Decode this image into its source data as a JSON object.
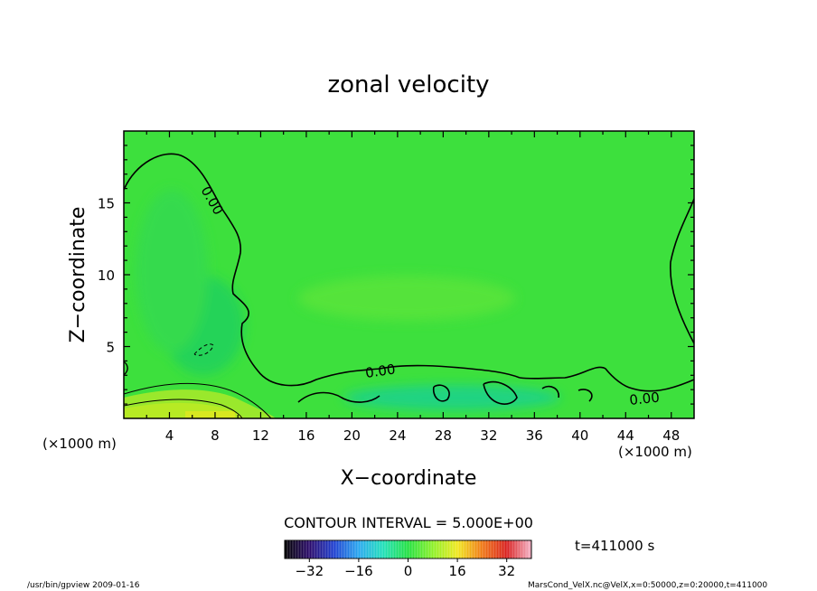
{
  "chart_data": {
    "type": "heatmap",
    "title": "zonal velocity",
    "xlabel": "X−coordinate",
    "ylabel": "Z−coordinate",
    "x_unit_left": "(×1000 m)",
    "x_unit_right": "(×1000 m)",
    "xlim": [
      0,
      50
    ],
    "ylim": [
      0,
      20
    ],
    "x_ticks": [
      4,
      8,
      12,
      16,
      20,
      24,
      28,
      32,
      36,
      40,
      44,
      48
    ],
    "y_ticks": [
      5,
      10,
      15
    ],
    "contour_interval_label": "CONTOUR INTERVAL = 5.000E+00",
    "contour_labels": [
      "0.00",
      "0.00",
      "0.00"
    ],
    "time_label": "t=411000 s",
    "colorbar": {
      "range": [
        -40,
        40
      ],
      "ticks": [
        -32,
        -16,
        0,
        16,
        32
      ],
      "colors": [
        "#000000",
        "#2a0a6a",
        "#1f3fd0",
        "#28a8f0",
        "#20e0b8",
        "#22e040",
        "#8cf028",
        "#f0e81e",
        "#f07814",
        "#d81e1e",
        "#f4b4c8"
      ]
    },
    "field_colors": {
      "background": "#3de03d",
      "near_zero": "#22d25c",
      "positive_low": "#9ae82c",
      "positive_mid": "#d8e820",
      "negative": "#1fd28a"
    },
    "footer_left": "/usr/bin/gpview   2009-01-16",
    "footer_right": "MarsCond_VelX.nc@VelX,x=0:50000,z=0:20000,t=411000"
  }
}
